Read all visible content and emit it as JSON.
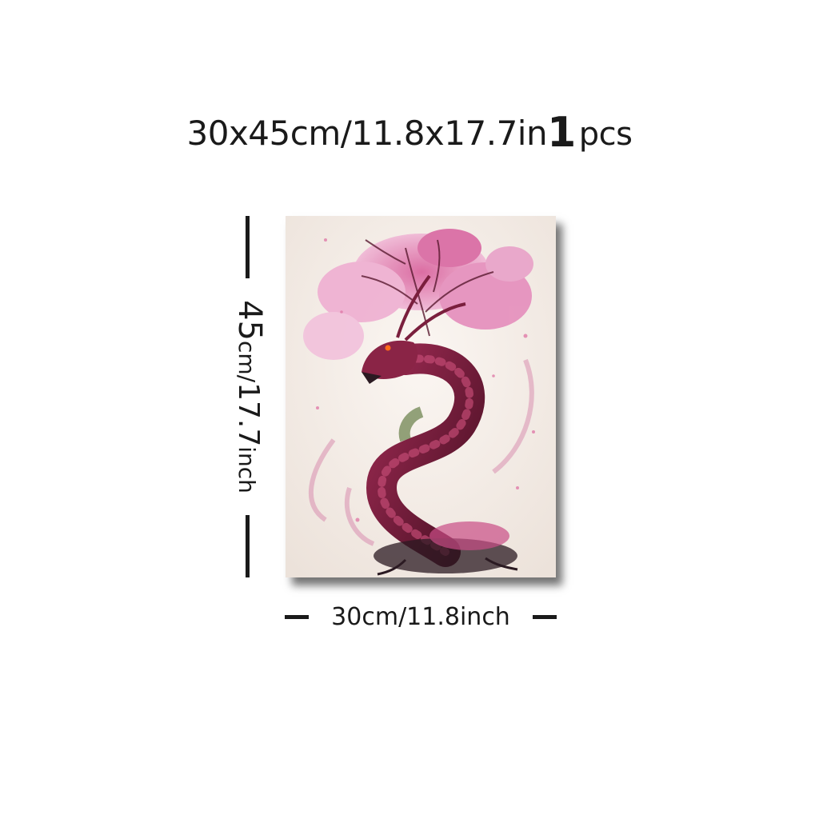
{
  "header": {
    "size_text": "30x45cm/11.8x17.7in",
    "quantity_number": "1",
    "quantity_unit": "pcs"
  },
  "dimensions": {
    "width_label": "30cm/11.8inch",
    "height_number": "45",
    "height_cm_unit": "cm/",
    "height_inch_number": "17.7",
    "height_inch_unit": "inch"
  },
  "artwork": {
    "subject": "pink cherry-blossom dragon canvas print",
    "colors": {
      "background": "#f3ece6",
      "blossom": "#e79fc4",
      "dragon": "#7a1f3d",
      "dark": "#2b1a22"
    }
  }
}
